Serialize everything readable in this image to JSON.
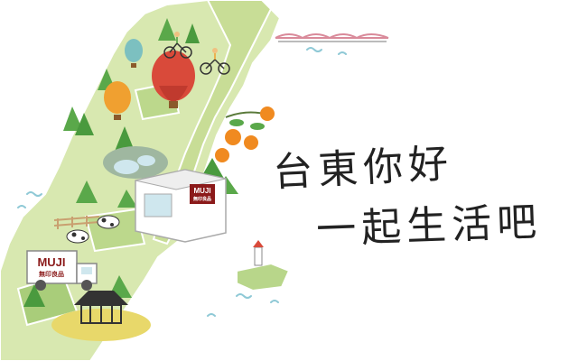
{
  "headline": {
    "line1": "台東你好",
    "line2": "一起生活吧"
  },
  "store_sign": {
    "brand": "MUJI",
    "subtitle": "無印良品"
  },
  "truck_sign": {
    "brand": "MUJI",
    "subtitle": "無印良品"
  },
  "colors": {
    "land": "#d8e8b0",
    "land_dark": "#b8d68a",
    "mountain": "#5aa84a",
    "sea_wave": "#8fc9d6",
    "brand_red": "#8b1a1a",
    "balloon_red": "#d94a3a",
    "balloon_orange": "#f0a030",
    "balloon_teal": "#7cc0c0",
    "orange_fruit": "#f08a20"
  },
  "icons": [
    "hot-air-balloon-icon",
    "cyclist-icon",
    "bridge-icon",
    "lighthouse-icon",
    "pavilion-icon",
    "cow-icon",
    "orange-tree-icon",
    "store-icon",
    "truck-icon"
  ]
}
